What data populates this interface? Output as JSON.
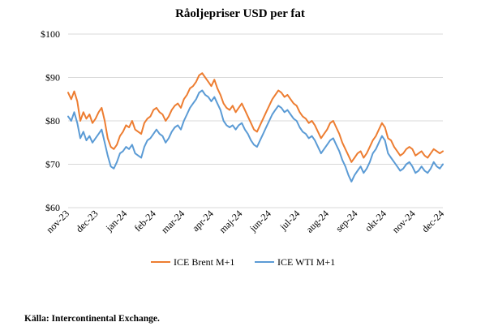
{
  "chart_data": {
    "type": "line",
    "title": "Råoljepriser USD per fat",
    "xlabel": "",
    "ylabel": "",
    "ylim": [
      60,
      100
    ],
    "y_ticks": [
      "$60",
      "$70",
      "$80",
      "$90",
      "$100"
    ],
    "x_ticks": [
      "nov-23",
      "dec-23",
      "jan-24",
      "feb-24",
      "mar-24",
      "apr-24",
      "maj-24",
      "jun-24",
      "jul-24",
      "aug-24",
      "sep-24",
      "okt-24",
      "nov-24",
      "dec-24"
    ],
    "grid": "horizontal",
    "legend_position": "bottom",
    "series": [
      {
        "name": "ICE Brent M+1",
        "color": "#ED7D31",
        "values": [
          86.5,
          85.0,
          86.8,
          84.5,
          80.0,
          82.0,
          80.5,
          81.5,
          79.5,
          80.5,
          82.0,
          83.0,
          80.0,
          76.0,
          74.0,
          73.5,
          74.5,
          76.5,
          77.5,
          79.0,
          78.5,
          80.0,
          78.0,
          77.5,
          77.0,
          79.5,
          80.5,
          81.0,
          82.5,
          83.0,
          82.0,
          81.5,
          80.0,
          81.0,
          82.5,
          83.5,
          84.0,
          83.0,
          85.0,
          86.0,
          87.5,
          88.0,
          89.0,
          90.5,
          91.0,
          90.0,
          89.0,
          88.0,
          89.5,
          87.5,
          86.0,
          84.0,
          83.0,
          82.5,
          83.5,
          82.0,
          83.0,
          84.0,
          82.5,
          81.0,
          79.5,
          78.0,
          77.5,
          79.0,
          80.5,
          82.0,
          83.5,
          85.0,
          86.0,
          87.0,
          86.5,
          85.5,
          86.0,
          85.0,
          84.0,
          83.5,
          82.0,
          81.0,
          80.5,
          79.5,
          80.0,
          79.0,
          77.5,
          76.0,
          77.0,
          78.0,
          79.5,
          80.0,
          78.5,
          77.0,
          75.0,
          73.5,
          72.0,
          70.5,
          71.5,
          72.5,
          73.0,
          71.5,
          72.5,
          74.0,
          75.5,
          76.5,
          78.0,
          79.5,
          78.5,
          76.0,
          75.5,
          74.0,
          73.0,
          72.0,
          72.5,
          73.5,
          74.0,
          73.5,
          72.0,
          72.5,
          73.0,
          72.0,
          71.5,
          72.5,
          73.5,
          73.0,
          72.5,
          73.0
        ],
        "sampling": "uniform from nov-23 to end of dec-24"
      },
      {
        "name": "ICE WTI M+1",
        "color": "#5B9BD5",
        "values": [
          81.0,
          80.0,
          82.0,
          79.5,
          76.0,
          77.5,
          75.5,
          76.5,
          75.0,
          76.0,
          77.0,
          78.0,
          75.0,
          72.0,
          69.5,
          69.0,
          70.5,
          72.5,
          73.0,
          74.0,
          73.5,
          74.5,
          72.5,
          72.0,
          71.5,
          74.0,
          75.5,
          76.0,
          77.0,
          78.0,
          77.0,
          76.5,
          75.0,
          76.0,
          77.5,
          78.5,
          79.0,
          78.0,
          80.0,
          81.5,
          83.0,
          84.0,
          85.0,
          86.5,
          87.0,
          86.0,
          85.5,
          84.5,
          85.5,
          84.0,
          82.5,
          80.0,
          79.0,
          78.5,
          79.0,
          78.0,
          79.0,
          79.5,
          78.0,
          77.0,
          75.5,
          74.5,
          74.0,
          75.5,
          77.0,
          78.5,
          80.0,
          81.5,
          82.5,
          83.5,
          83.0,
          82.0,
          82.5,
          81.5,
          80.5,
          80.0,
          78.5,
          77.5,
          77.0,
          76.0,
          76.5,
          75.5,
          74.0,
          72.5,
          73.5,
          74.5,
          75.5,
          76.0,
          74.5,
          73.0,
          71.0,
          69.5,
          67.5,
          66.0,
          67.5,
          68.5,
          69.5,
          68.0,
          69.0,
          70.5,
          72.5,
          73.5,
          75.0,
          76.5,
          75.5,
          72.5,
          71.5,
          70.5,
          69.5,
          68.5,
          69.0,
          70.0,
          70.5,
          69.5,
          68.0,
          68.5,
          69.5,
          68.5,
          68.0,
          69.0,
          70.5,
          69.5,
          69.0,
          70.0
        ]
      }
    ]
  },
  "source": "Källa: Intercontinental Exchange."
}
